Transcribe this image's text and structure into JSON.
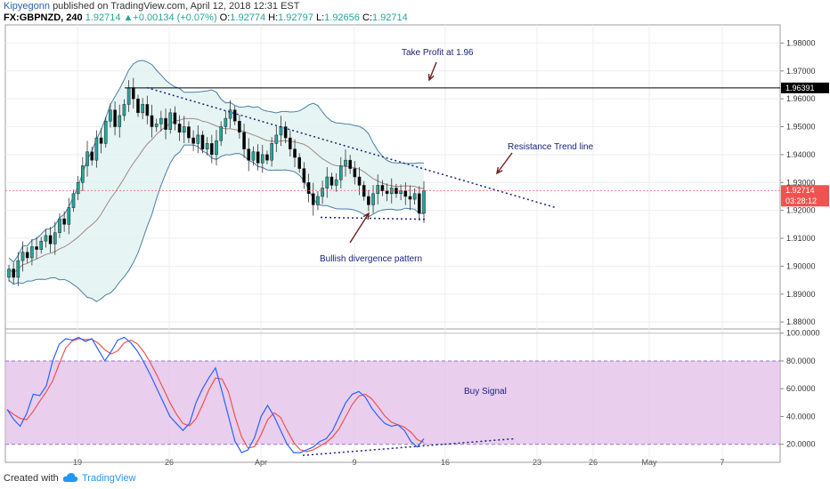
{
  "header": {
    "author": "Kipyegonn",
    "published_text": "published on TradingView.com, April 12, 2018 12:31 EST",
    "symbol": "FX:GBPNZD, 240",
    "last": "1.92714",
    "change": "+0.00134 (+0.07%)",
    "o_label": "O:",
    "o_value": "1.92774",
    "h_label": "H:",
    "h_value": "1.92797",
    "l_label": "L:",
    "l_value": "1.92656",
    "c_label": "C:",
    "c_value": "1.92714"
  },
  "annotations": {
    "take_profit": "Take Profit at 1.96",
    "resistance": "Resistance Trend line",
    "bullish": "Bullish divergence pattern",
    "buy_signal": "Buy Signal"
  },
  "footer": {
    "created_with": "Created with",
    "brand": "TradingView"
  },
  "colors": {
    "bull": "#26a69a",
    "bear": "#000000",
    "band": "#4a7fa7",
    "band_fill": "#e0f2f1",
    "annotation_text": "#1a237e",
    "trendline": "#1a237e",
    "arrow": "#6d1f1f",
    "stoch_zone": "#e1bee7",
    "stoch_k": "#2962ff",
    "stoch_d": "#ef5350",
    "price_line": "#ff5252"
  },
  "chart_data": [
    {
      "type": "candlestick",
      "y_ticks": [
        "1.98000",
        "1.97000",
        "1.96000",
        "1.95000",
        "1.94000",
        "1.93000",
        "1.92000",
        "1.91000",
        "1.90000",
        "1.89000",
        "1.88000"
      ],
      "ylim": [
        1.8775,
        1.9865
      ],
      "x_ticks": [
        "19",
        "26",
        "Apr",
        "9",
        "16",
        "23",
        "26",
        "May",
        "7"
      ],
      "take_profit_level": "1.96391",
      "current_price": "1.92714",
      "countdown": "03:28:12",
      "closes": [
        1.899,
        1.896,
        1.902,
        1.905,
        1.903,
        1.907,
        1.906,
        1.909,
        1.911,
        1.908,
        1.912,
        1.917,
        1.915,
        1.921,
        1.926,
        1.93,
        1.936,
        1.941,
        1.938,
        1.946,
        1.944,
        1.952,
        1.956,
        1.95,
        1.954,
        1.958,
        1.964,
        1.96,
        1.955,
        1.958,
        1.954,
        1.95,
        1.951,
        1.953,
        1.949,
        1.955,
        1.951,
        1.948,
        1.95,
        1.946,
        1.944,
        1.947,
        1.942,
        1.944,
        1.94,
        1.945,
        1.95,
        1.953,
        1.956,
        1.952,
        1.948,
        1.942,
        1.938,
        1.941,
        1.937,
        1.94,
        1.938,
        1.944,
        1.947,
        1.95,
        1.946,
        1.942,
        1.939,
        1.935,
        1.93,
        1.926,
        1.922,
        1.925,
        1.928,
        1.932,
        1.929,
        1.931,
        1.936,
        1.938,
        1.935,
        1.932,
        1.929,
        1.925,
        1.922,
        1.926,
        1.929,
        1.927,
        1.926,
        1.928,
        1.926,
        1.927,
        1.925,
        1.924,
        1.926,
        1.919,
        1.927
      ],
      "stochastic": {
        "levels": [
          20,
          80
        ],
        "y_ticks": [
          "100.0000",
          "80.0000",
          "60.0000",
          "40.0000",
          "20.0000"
        ],
        "k": [
          45,
          38,
          33,
          42,
          56,
          55,
          62,
          80,
          92,
          96,
          95,
          97,
          94,
          96,
          88,
          80,
          87,
          95,
          97,
          93,
          87,
          79,
          70,
          60,
          50,
          40,
          35,
          30,
          35,
          50,
          60,
          68,
          75,
          58,
          40,
          22,
          14,
          16,
          25,
          40,
          48,
          40,
          30,
          20,
          14,
          14,
          16,
          18,
          22,
          24,
          30,
          40,
          50,
          56,
          58,
          54,
          46,
          40,
          35,
          33,
          34,
          30,
          22,
          18,
          24
        ]
      }
    }
  ]
}
